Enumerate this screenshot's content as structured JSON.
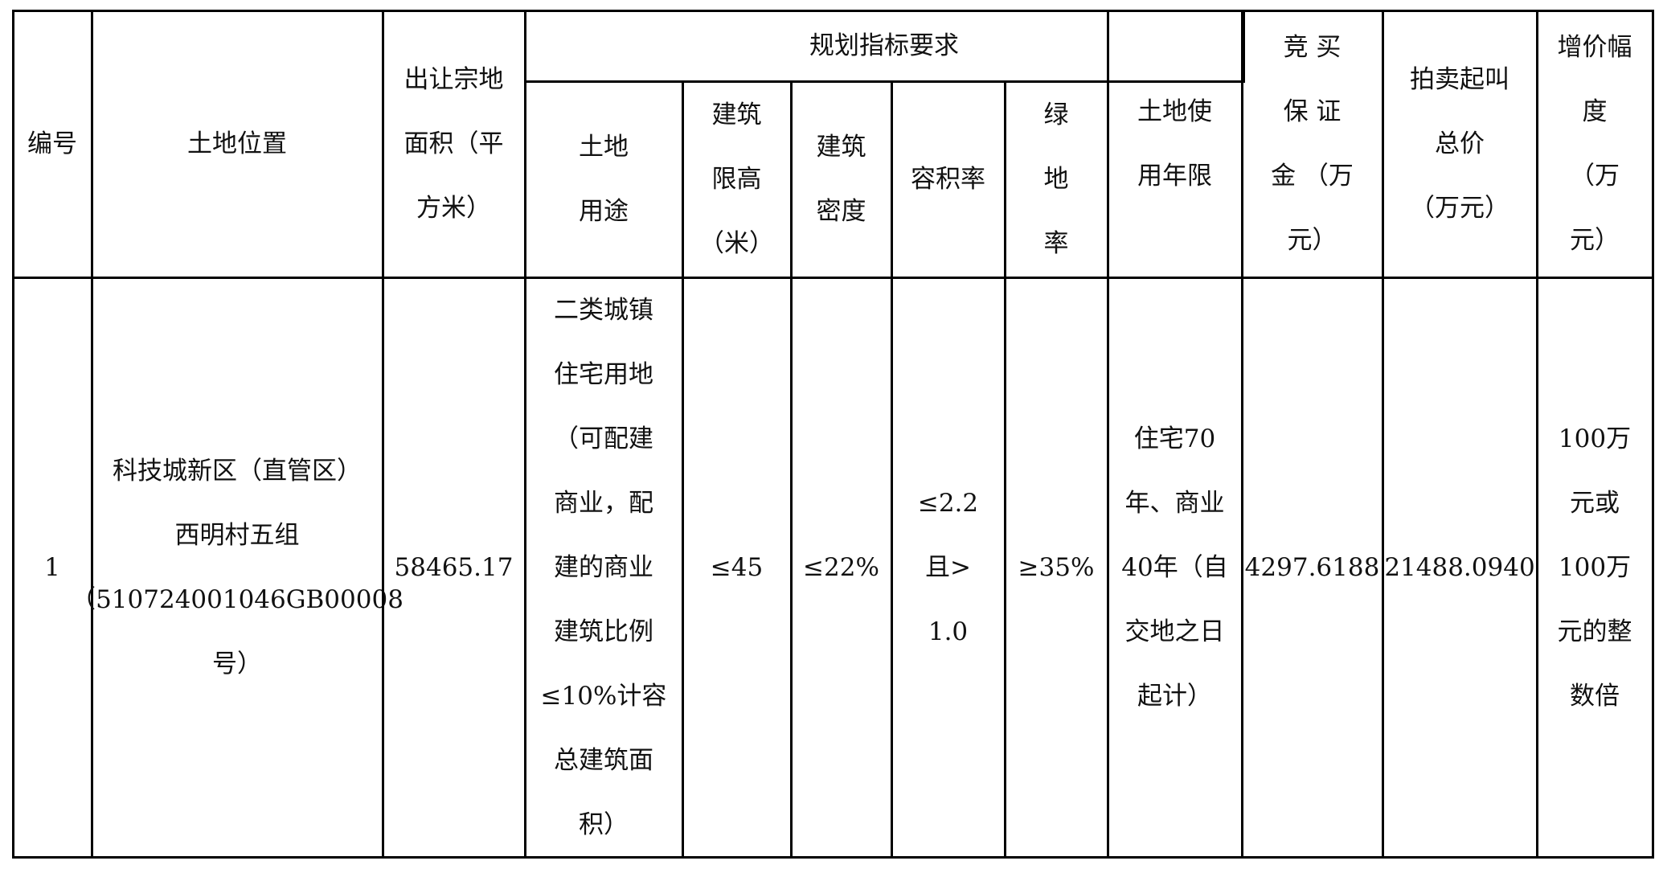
{
  "table": {
    "headers": {
      "id": "编号",
      "location": "土地位置",
      "area": "出让宗地\n面积（平\n方米）",
      "planning_group": "规划指标要求",
      "land_use": "土地\n用途",
      "height_limit": "建筑\n限高\n（米）",
      "density": "建筑\n密度",
      "far": "容积率",
      "green": "绿\n地\n率",
      "term": "土地使\n用年限",
      "deposit": "竞 买\n保 证\n金 （万\n元）",
      "start_price": "拍卖起叫\n总价\n（万元）",
      "increment": "增价幅\n度\n（万\n元）"
    },
    "rows": [
      {
        "id": "1",
        "location": "科技城新区（直管区）\n西明村五组\n（510724001046GB00008\n号）",
        "area": "58465.17",
        "land_use": "二类城镇\n住宅用地\n（可配建\n商业，配\n建的商业\n建筑比例\n≤10%计容\n总建筑面\n积）",
        "height_limit": "≤45",
        "density": "≤22%",
        "far": "≤2.2\n且>\n1.0",
        "green": "≥35%",
        "term": "住宅70\n年、商业\n40年（自\n交地之日\n起计）",
        "deposit": "4297.6188",
        "start_price": "21488.0940",
        "increment": "100万\n元或\n100万\n元的整\n数倍"
      }
    ]
  }
}
